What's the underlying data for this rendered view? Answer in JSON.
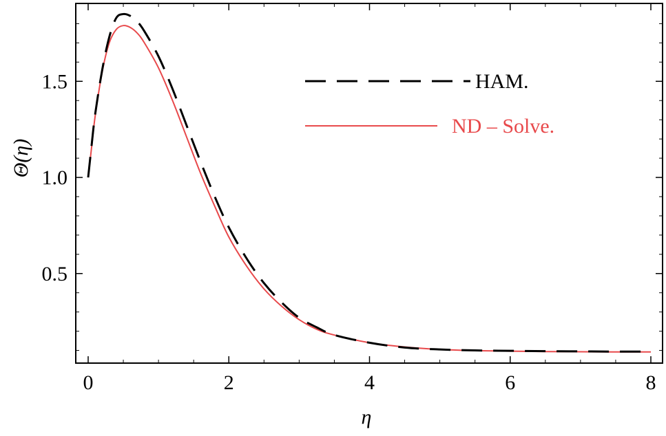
{
  "chart_data": {
    "type": "line",
    "xlabel": "η",
    "ylabel": "Θ(η)",
    "xlim": [
      0,
      8
    ],
    "ylim": [
      0.0,
      1.85
    ],
    "x_ticks": [
      "0",
      "2",
      "4",
      "6",
      "8"
    ],
    "y_ticks": [
      "0.5",
      "1.0",
      "1.5"
    ],
    "y_tick_values": [
      0.5,
      1.0,
      1.5
    ],
    "x_tick_values": [
      0,
      2,
      4,
      6,
      8
    ],
    "grid": false,
    "legend_position": "top-right",
    "series": [
      {
        "name": "HAM.",
        "color": "#000000",
        "style": "dashed",
        "x": [
          0,
          0.05,
          0.1,
          0.2,
          0.3,
          0.4,
          0.5,
          0.6,
          0.7,
          0.8,
          1.0,
          1.2,
          1.4,
          1.6,
          1.8,
          2.0,
          2.25,
          2.5,
          2.75,
          3.0,
          3.25,
          3.5,
          4.0,
          4.5,
          5.0,
          5.5,
          6.0,
          6.5,
          7.0,
          7.5,
          8.0
        ],
        "y": [
          1.0,
          1.17,
          1.33,
          1.56,
          1.73,
          1.83,
          1.85,
          1.84,
          1.81,
          1.76,
          1.63,
          1.46,
          1.27,
          1.08,
          0.9,
          0.74,
          0.58,
          0.45,
          0.35,
          0.27,
          0.22,
          0.18,
          0.14,
          0.115,
          0.105,
          0.1,
          0.098,
          0.096,
          0.095,
          0.094,
          0.094
        ]
      },
      {
        "name": "ND – Solve.",
        "color": "#e8494b",
        "style": "solid",
        "x": [
          0,
          0.05,
          0.1,
          0.2,
          0.3,
          0.4,
          0.5,
          0.6,
          0.7,
          0.8,
          1.0,
          1.2,
          1.4,
          1.6,
          1.8,
          2.0,
          2.25,
          2.5,
          2.75,
          3.0,
          3.25,
          3.5,
          4.0,
          4.5,
          5.0,
          5.5,
          6.0,
          6.5,
          7.0,
          7.5,
          8.0
        ],
        "y": [
          1.0,
          1.16,
          1.32,
          1.55,
          1.7,
          1.77,
          1.79,
          1.78,
          1.75,
          1.7,
          1.57,
          1.4,
          1.21,
          1.02,
          0.85,
          0.69,
          0.54,
          0.42,
          0.33,
          0.26,
          0.21,
          0.18,
          0.14,
          0.118,
          0.105,
          0.099,
          0.096,
          0.094,
          0.093,
          0.092,
          0.092
        ]
      }
    ]
  }
}
